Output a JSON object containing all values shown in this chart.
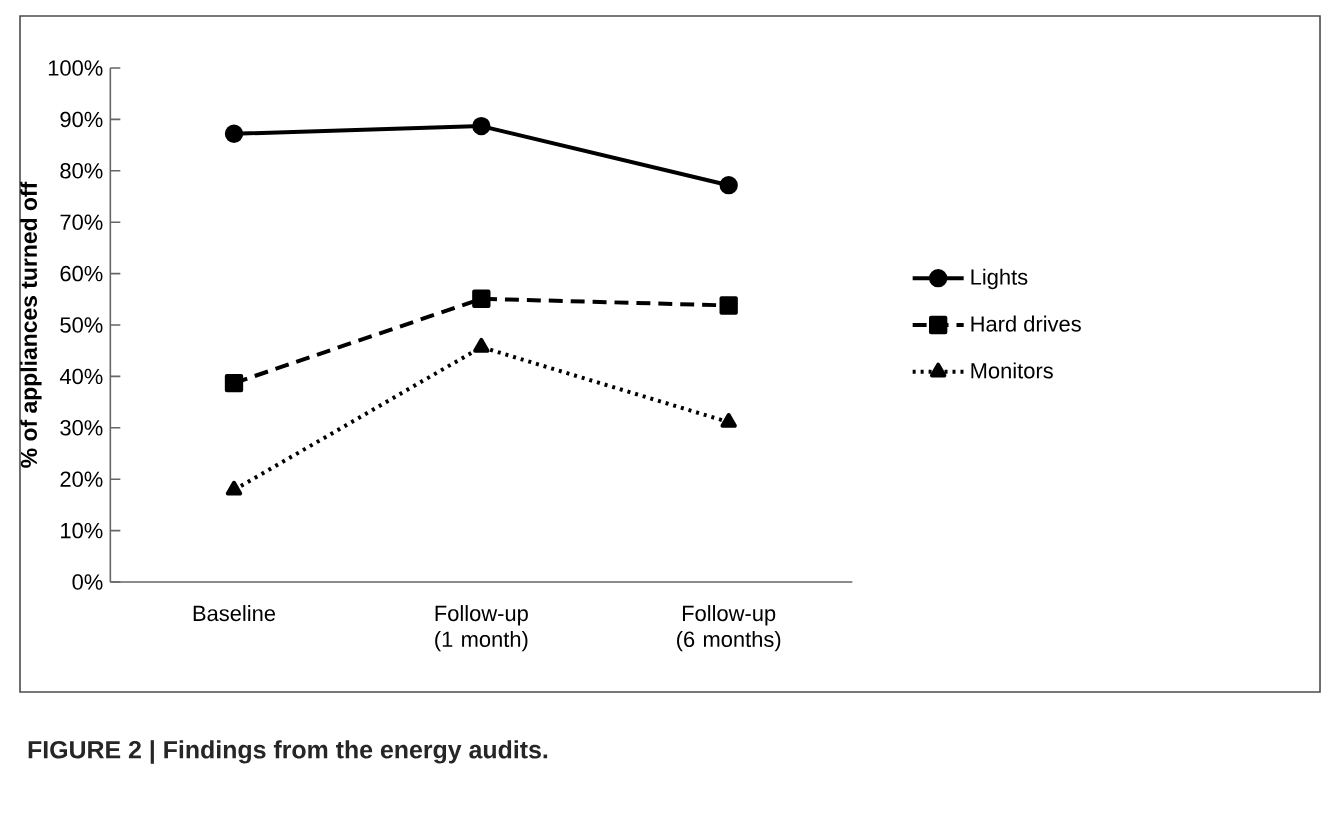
{
  "chart_data": {
    "type": "line",
    "categories": [
      "Baseline",
      "Follow-up (1 month)",
      "Follow-up (6 months)"
    ],
    "ylabel": "% of appliances turned off",
    "series": [
      {
        "name": "Lights",
        "color": "#000000",
        "values": [
          87.2,
          88.7,
          77.2
        ],
        "marker": "circle",
        "line_style": "solid"
      },
      {
        "name": "Hard drives",
        "color": "#000000",
        "values": [
          38.7,
          55.1,
          53.8
        ],
        "marker": "square",
        "line_style": "dashed"
      },
      {
        "name": "Monitors",
        "color": "#000000",
        "values": [
          17.9,
          45.7,
          31.1
        ],
        "marker": "triangle",
        "line_style": "dotted"
      }
    ],
    "ylim": [
      0,
      100
    ],
    "yticks": [
      {
        "value": 0,
        "label": "0%"
      },
      {
        "value": 10,
        "label": "10%"
      },
      {
        "value": 20,
        "label": "20%"
      },
      {
        "value": 30,
        "label": "30%"
      },
      {
        "value": 40,
        "label": "40%"
      },
      {
        "value": 50,
        "label": "50%"
      },
      {
        "value": 60,
        "label": "60%"
      },
      {
        "value": 70,
        "label": "70%"
      },
      {
        "value": 80,
        "label": "80%"
      },
      {
        "value": 90,
        "label": "90%"
      },
      {
        "value": 100,
        "label": "100%"
      }
    ],
    "legend": "right",
    "annotations": [
      "FIGURE 2 | Findings from the energy audits."
    ]
  }
}
